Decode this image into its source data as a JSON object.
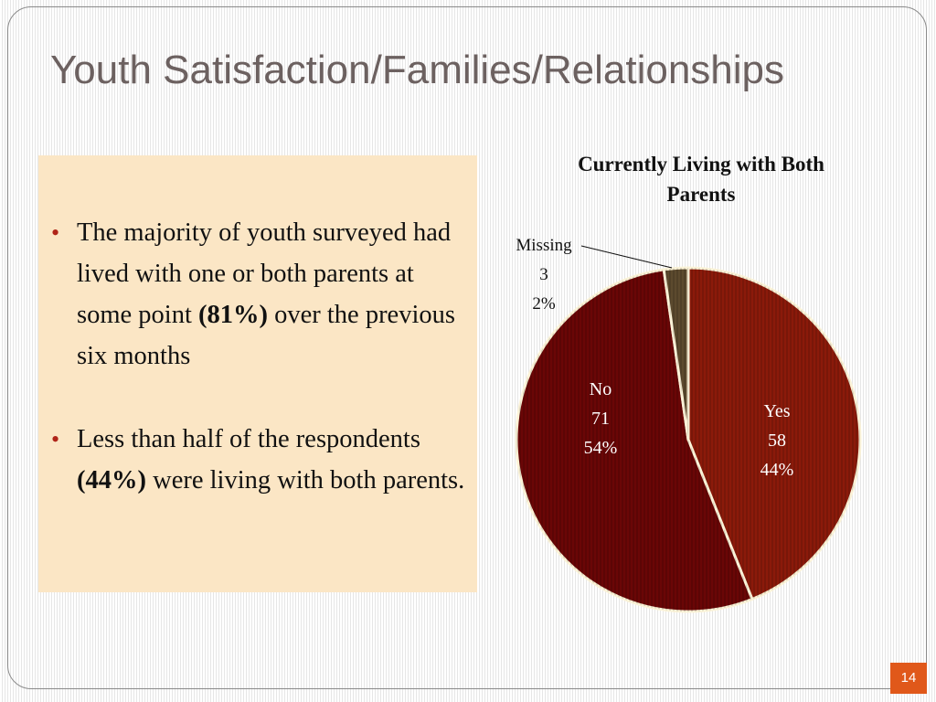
{
  "slide": {
    "title": "Youth Satisfaction/Families/Relationships",
    "page_number": "14"
  },
  "bullets": [
    {
      "pre": "The majority of youth surveyed had lived with one or both parents at some point ",
      "bold": "(81%)",
      "post": " over the previous six months"
    },
    {
      "pre": "Less than half of the respondents ",
      "bold": "(44%)",
      "post": " were living with both parents."
    }
  ],
  "chart_data": {
    "type": "pie",
    "title": "Currently Living with Both Parents",
    "slices": [
      {
        "label": "Yes",
        "value": 58,
        "percent": "44%",
        "color": "#8b1a0a"
      },
      {
        "label": "No",
        "value": 71,
        "percent": "54%",
        "color": "#6a0606"
      },
      {
        "label": "Missing",
        "value": 3,
        "percent": "2%",
        "color": "#5c4a2e"
      }
    ],
    "start_angle_deg": 0,
    "direction": "clockwise",
    "label_color": "#ffffff",
    "outside_label_color": "#111111"
  }
}
